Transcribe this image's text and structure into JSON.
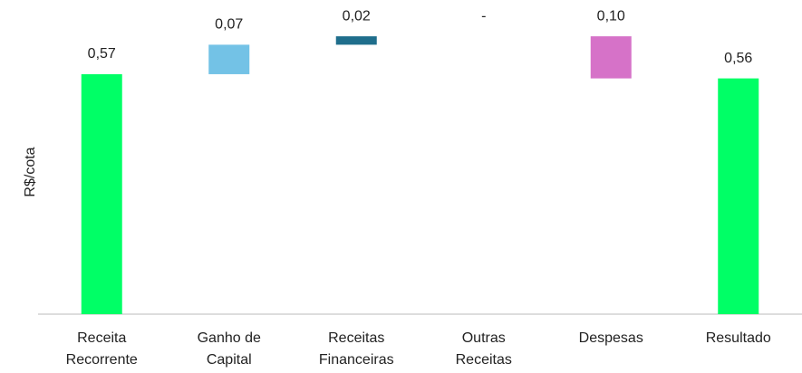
{
  "chart_data": {
    "type": "waterfall",
    "y_label": "R$/cota",
    "categories": [
      "Receita Recorrente",
      "Ganho de Capital",
      "Receitas Financeiras",
      "Outras Receitas",
      "Despesas",
      "Resultado"
    ],
    "values": [
      0.57,
      0.07,
      0.02,
      0,
      -0.1,
      0.56
    ],
    "value_labels": [
      "0,57",
      "0,07",
      "0,02",
      "-",
      "0,10",
      "0,56"
    ],
    "is_total": [
      true,
      false,
      false,
      false,
      false,
      true
    ],
    "colors": [
      "#00ff66",
      "#73c2e6",
      "#1f6e8c",
      "#1f6e8c",
      "#d672c8",
      "#00ff66"
    ],
    "ylim": [
      0,
      0.7
    ]
  }
}
